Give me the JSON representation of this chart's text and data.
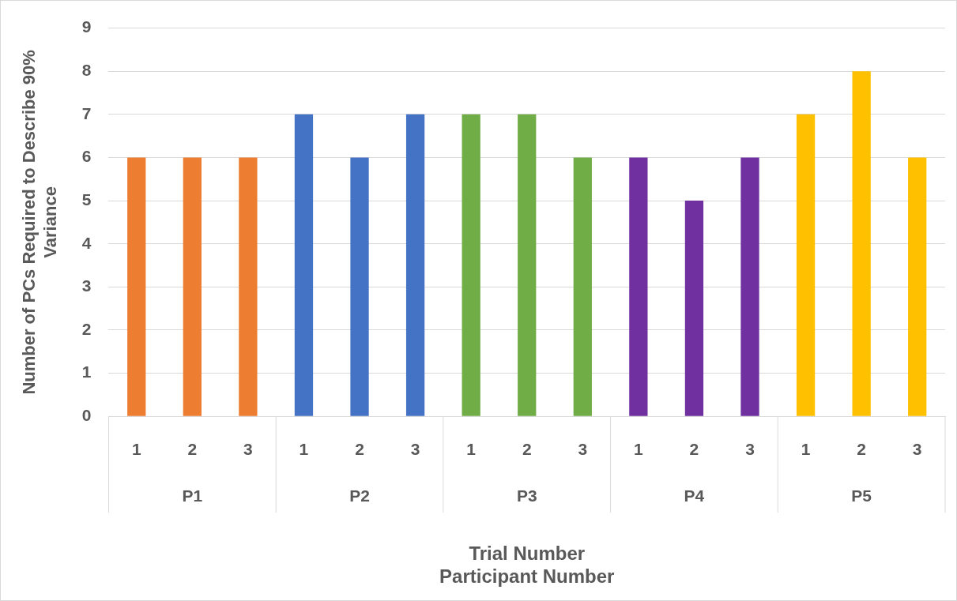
{
  "chart_data": {
    "type": "bar",
    "categories": [
      "1",
      "2",
      "3",
      "1",
      "2",
      "3",
      "1",
      "2",
      "3",
      "1",
      "2",
      "3",
      "1",
      "2",
      "3"
    ],
    "values": [
      6,
      6,
      6,
      7,
      6,
      7,
      7,
      7,
      6,
      6,
      5,
      6,
      7,
      8,
      6
    ],
    "colors": [
      "#ed7d31",
      "#ed7d31",
      "#ed7d31",
      "#4472c4",
      "#4472c4",
      "#4472c4",
      "#70ad47",
      "#70ad47",
      "#70ad47",
      "#7030a0",
      "#7030a0",
      "#7030a0",
      "#ffc000",
      "#ffc000",
      "#ffc000"
    ],
    "annotations": [
      "P1",
      "P2",
      "P3",
      "P4",
      "P5"
    ],
    "xlabel": "Trial Number\nParticipant Number",
    "ylabel": "Number of PCs Required to Describe 90%\nVariance",
    "ylim": [
      0,
      9
    ],
    "yticks": [
      0,
      1,
      2,
      3,
      4,
      5,
      6,
      7,
      8,
      9
    ],
    "grid": "y",
    "legend": false
  }
}
